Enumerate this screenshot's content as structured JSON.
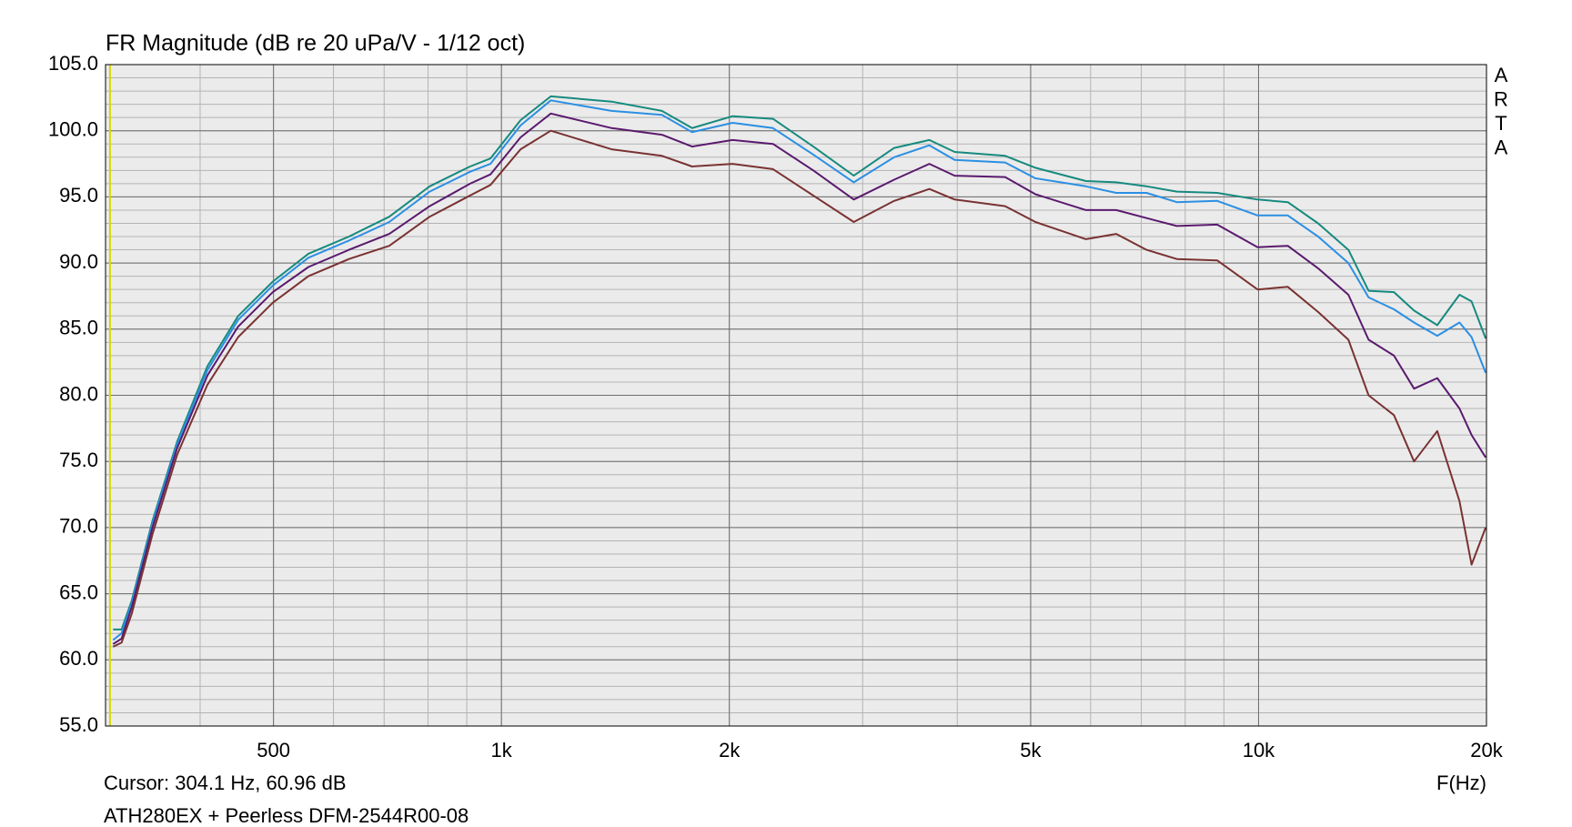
{
  "chart_data": {
    "type": "line",
    "title": "FR Magnitude (dB re 20 uPa/V - 1/12 oct)",
    "xlabel": "F(Hz)",
    "subtitle": "ATH280EX + Peerless DFM-2544R00-08",
    "side_text": [
      "A",
      "R",
      "T",
      "A"
    ],
    "cursor": {
      "x": 304.1,
      "label": "Cursor: 304.1 Hz, 60.96 dB",
      "color": "#d8d800"
    },
    "xscale": "log",
    "grid": true,
    "xlim": [
      300,
      20000
    ],
    "ylim": [
      55,
      105
    ],
    "xticks": [
      500,
      {
        "value": 1000,
        "label": "1k"
      },
      {
        "value": 2000,
        "label": "2k"
      },
      {
        "value": 5000,
        "label": "5k"
      },
      {
        "value": 10000,
        "label": "10k"
      },
      {
        "value": 20000,
        "label": "20k"
      }
    ],
    "yticks": [
      {
        "value": 55,
        "label": "55.0"
      },
      {
        "value": 60,
        "label": "60.0"
      },
      {
        "value": 65,
        "label": "65.0"
      },
      {
        "value": 70,
        "label": "70.0"
      },
      {
        "value": 75,
        "label": "75.0"
      },
      {
        "value": 80,
        "label": "80.0"
      },
      {
        "value": 85,
        "label": "85.0"
      },
      {
        "value": 90,
        "label": "90.0"
      },
      {
        "value": 95,
        "label": "95.0"
      },
      {
        "value": 100,
        "label": "100.0"
      },
      {
        "value": 105,
        "label": "105.0"
      }
    ],
    "x": [
      307,
      315,
      325,
      346,
      373,
      409,
      449,
      499,
      556,
      629,
      711,
      804,
      909,
      967,
      1060,
      1162,
      1398,
      1629,
      1786,
      2020,
      2284,
      2582,
      2920,
      3302,
      3675,
      3968,
      4627,
      5074,
      5916,
      6486,
      7112,
      7798,
      8817,
      9970,
      10930,
      11985,
      13142,
      13974,
      15093,
      16047,
      17219,
      18423,
      19113,
      19953
    ],
    "series": [
      {
        "color": "#168a7e",
        "values": [
          62.3,
          62.3,
          64.5,
          70.5,
          76.5,
          82.2,
          86,
          88.6,
          90.7,
          92,
          93.5,
          95.8,
          97.3,
          97.9,
          100.8,
          102.6,
          102.2,
          101.5,
          100.2,
          101.1,
          100.9,
          98.8,
          96.6,
          98.7,
          99.3,
          98.4,
          98.1,
          97.2,
          96.2,
          96.1,
          95.8,
          95.4,
          95.3,
          94.8,
          94.6,
          93,
          91,
          87.9,
          87.8,
          86.4,
          85.3,
          87.6,
          87.1,
          84.3
        ]
      },
      {
        "color": "#2b8fe3",
        "values": [
          61.5,
          62,
          64.3,
          70.3,
          76.3,
          81.9,
          85.7,
          88.3,
          90.4,
          91.7,
          93.1,
          95.4,
          96.9,
          97.5,
          100.4,
          102.3,
          101.5,
          101.2,
          99.9,
          100.6,
          100.2,
          98.2,
          96.1,
          98,
          98.9,
          97.8,
          97.6,
          96.4,
          95.8,
          95.3,
          95.3,
          94.6,
          94.7,
          93.6,
          93.6,
          92,
          90,
          87.4,
          86.5,
          85.5,
          84.5,
          85.5,
          84.4,
          81.7
        ]
      },
      {
        "color": "#5a1a6e",
        "values": [
          61.2,
          61.6,
          64,
          70,
          76,
          81.5,
          85.2,
          87.8,
          89.7,
          91,
          92.2,
          94.3,
          96,
          96.7,
          99.5,
          101.3,
          100.2,
          99.7,
          98.8,
          99.3,
          99,
          97,
          94.8,
          96.3,
          97.5,
          96.6,
          96.5,
          95.2,
          94,
          94,
          93.4,
          92.8,
          92.9,
          91.2,
          91.3,
          89.6,
          87.6,
          84.2,
          83,
          80.5,
          81.3,
          79,
          77,
          75.3
        ]
      },
      {
        "color": "#7a3232",
        "values": [
          61,
          61.3,
          63.5,
          69.5,
          75.5,
          80.8,
          84.4,
          87,
          89,
          90.3,
          91.3,
          93.5,
          95.1,
          95.9,
          98.6,
          100,
          98.6,
          98.1,
          97.3,
          97.5,
          97.1,
          95.1,
          93.1,
          94.7,
          95.6,
          94.8,
          94.3,
          93.1,
          91.8,
          92.2,
          91,
          90.3,
          90.2,
          88,
          88.2,
          86.3,
          84.2,
          80,
          78.5,
          75,
          77.3,
          72,
          67.2,
          70
        ]
      }
    ]
  }
}
